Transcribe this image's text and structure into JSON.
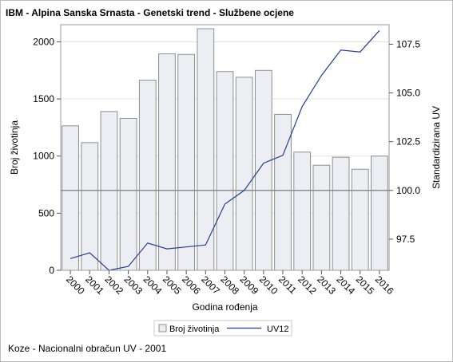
{
  "chart_data": {
    "type": "bar",
    "title": "IBM - Alpina Sanska Srnasta - Genetski trend - Službene ocjene",
    "xlabel": "Godina rođenja",
    "categories": [
      "2000",
      "2001",
      "2002",
      "2003",
      "2004",
      "2005",
      "2006",
      "2007",
      "2008",
      "2009",
      "2010",
      "2011",
      "2012",
      "2013",
      "2014",
      "2015",
      "2016"
    ],
    "left_axis": {
      "label": "Broj životinja",
      "range": [
        0,
        2150
      ],
      "ticks": [
        0,
        500,
        1000,
        1500,
        2000
      ]
    },
    "right_axis": {
      "label": "Standardizirana UV",
      "range": [
        95.9,
        108.5
      ],
      "ticks": [
        97.5,
        100.0,
        102.5,
        105.0,
        107.5
      ]
    },
    "reference_line": 100.0,
    "series": [
      {
        "name": "Broj životinja",
        "type": "bar",
        "axis": "left",
        "values": [
          1265,
          1118,
          1390,
          1330,
          1665,
          1895,
          1890,
          2115,
          1740,
          1690,
          1750,
          1365,
          1035,
          920,
          990,
          885,
          1000
        ]
      },
      {
        "name": "UV12",
        "type": "line",
        "axis": "right",
        "values": [
          96.5,
          96.8,
          95.9,
          96.1,
          97.3,
          97.0,
          97.1,
          97.2,
          99.3,
          100.0,
          101.4,
          101.8,
          104.3,
          105.9,
          107.2,
          107.1,
          108.2
        ]
      }
    ],
    "legend_position": "bottom",
    "grid": true,
    "colors": {
      "bar_fill": "#eceef4",
      "bar_stroke": "#8f8f8f",
      "line": "#1f3f8f",
      "reference": "#8c8c8c",
      "grid": "#e3e3e3"
    }
  },
  "footnote": "Koze - Nacionalni obračun UV - 2001"
}
